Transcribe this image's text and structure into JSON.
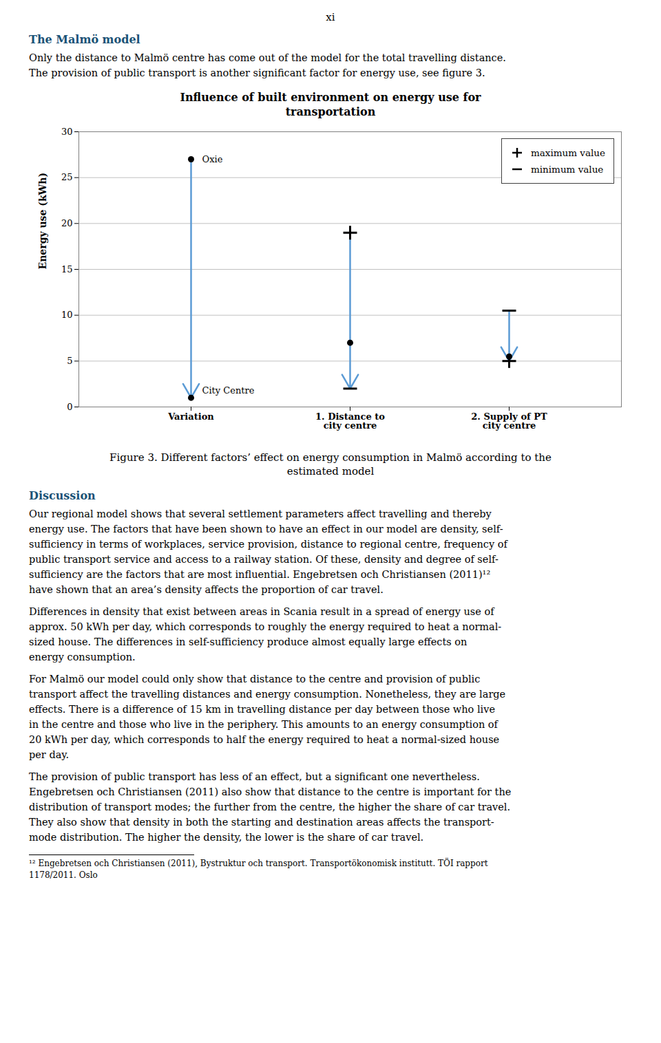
{
  "page_number": "xi",
  "section_heading": "The Malmö model",
  "heading_color": "#1a5276",
  "paragraph_before_chart": [
    "Only the distance to Malmö centre has come out of the model for the total travelling distance.",
    "The provision of public transport is another significant factor for energy use, see figure 3."
  ],
  "chart_data": {
    "type": "range",
    "title": "Influence of built environment on energy use for\ntransportation",
    "ylabel": "Energy use (kWh)",
    "categories": [
      "Variation",
      "1. Distance to\ncity centre",
      "2. Supply of PT\ncity centre"
    ],
    "arrows": {
      "from": [
        27,
        19,
        10.5
      ],
      "to": [
        1,
        2,
        5
      ],
      "color": "#5b9bd5"
    },
    "dots": {
      "marker": "dot",
      "color": "#000000",
      "values": [
        [
          27,
          1
        ],
        [
          7
        ],
        [
          5.5
        ]
      ]
    },
    "series": [
      {
        "name": "maximum value",
        "marker": "plus",
        "color": "#000000",
        "values": [
          null,
          19,
          5
        ]
      },
      {
        "name": "minimum value",
        "marker": "minus",
        "color": "#000000",
        "values": [
          null,
          2,
          10.5
        ]
      }
    ],
    "annotations": [
      {
        "text": "Oxie",
        "category": "Variation",
        "y": 27
      },
      {
        "text": "City Centre",
        "category": "Variation",
        "y": 1
      }
    ],
    "ylim": [
      0,
      30
    ],
    "yticks": [
      0,
      5,
      10,
      15,
      20,
      25,
      30
    ],
    "grid": true,
    "legend": "upper right"
  },
  "figure_caption": [
    "Figure 3. Different factors’ effect on energy consumption in Malmö according to the",
    "estimated model"
  ],
  "discussion_heading": "Discussion",
  "discussion_paragraphs": [
    [
      "Our regional model shows that several settlement parameters affect travelling and thereby",
      "energy use. The factors that have been shown to have an effect in our model are density, self-",
      "sufficiency in terms of workplaces, service provision, distance to regional centre, frequency of",
      "public transport service and access to a railway station. Of these, density and degree of self-",
      "sufficiency are the factors that are most influential. Engebretsen och Christiansen (2011)¹²",
      "have shown that an area’s density affects the proportion of car travel."
    ],
    [
      "Differences in density that exist between areas in Scania result in a spread of energy use of",
      "approx. 50 kWh per day, which corresponds to roughly the energy required to heat a  normal-",
      "sized house. The differences in self-sufficiency produce almost equally large effects on",
      "energy consumption."
    ],
    [
      "For Malmö our model could only show that distance to the centre and provision of public",
      "transport affect the travelling distances and energy consumption. Nonetheless, they are large",
      "effects. There is a difference of 15 km in travelling distance per day between those who live",
      "in the centre and those who live in the periphery. This amounts to an energy consumption of",
      "20 kWh per day, which corresponds to half the energy required to heat a normal-sized house",
      "per day."
    ],
    [
      "The provision of public transport has less of an effect, but a significant one nevertheless.",
      "Engebretsen och Christiansen (2011) also show that distance to the centre is important for the",
      "distribution of transport modes; the further from the centre, the higher the share of car travel.",
      "They also show that density in both the starting and destination areas affects the transport-",
      "mode distribution. The higher the density, the lower is the share of car travel."
    ]
  ],
  "footnote": [
    "¹² Engebretsen och Christiansen (2011), Bystruktur och transport. Transportökonomisk institutt. TÖI rapport",
    "1178/2011. Oslo"
  ]
}
